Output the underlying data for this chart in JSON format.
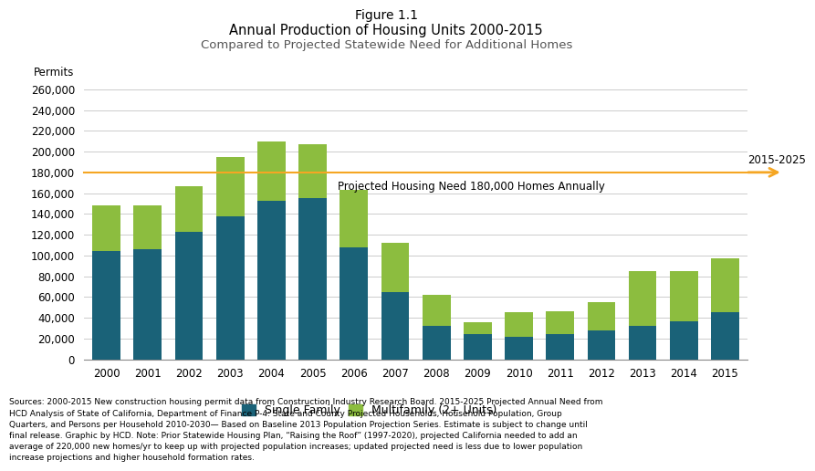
{
  "title_line1": "Figure 1.1",
  "title_line2": "Annual Production of Housing Units 2000-2015",
  "title_line3": "Compared to Projected Statewide Need for Additional Homes",
  "years": [
    "2000",
    "2001",
    "2002",
    "2003",
    "2004",
    "2005",
    "2006",
    "2007",
    "2008",
    "2009",
    "2010",
    "2011",
    "2012",
    "2013",
    "2014",
    "2015"
  ],
  "single_family": [
    104000,
    106000,
    123000,
    138000,
    153000,
    155000,
    108000,
    65000,
    32000,
    24000,
    22000,
    24000,
    28000,
    32000,
    37000,
    45000
  ],
  "multifamily": [
    44000,
    42000,
    44000,
    57000,
    57000,
    52000,
    55000,
    47000,
    30000,
    12000,
    23000,
    22000,
    27000,
    53000,
    48000,
    52000
  ],
  "sf_color": "#1a6278",
  "mf_color": "#8cbd3f",
  "projected_need": 180000,
  "projected_label": "Projected Housing Need 180,000 Homes Annually",
  "arrow_label": "2015-2025",
  "arrow_color": "#f5a623",
  "ylabel": "Permits",
  "ylim_max": 260000,
  "ytick_step": 20000,
  "legend_sf": "Single Family",
  "legend_mf": "Multifamily (2+ Units)",
  "sources_text": "Sources: 2000-2015 New construction housing permit data from Construction Industry Research Board. 2015-2025 Projected Annual Need from\nHCD Analysis of State of California, Department of Finance P-4: State and County Projected Households, Household Population, Group\nQuarters, and Persons per Household 2010-2030— Based on Baseline 2013 Population Projection Series. Estimate is subject to change until\nfinal release. Graphic by HCD. Note: Prior Statewide Housing Plan, “Raising the Roof” (1997-2020), projected California needed to add an\naverage of 220,000 new homes/yr to keep up with projected population increases; updated projected need is less due to lower population\nincrease projections and higher household formation rates."
}
